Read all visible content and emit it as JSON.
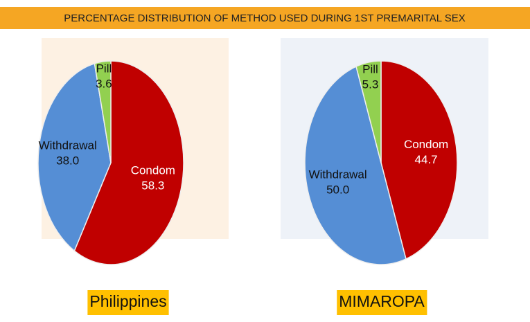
{
  "title": "PERCENTAGE DISTRIBUTION OF METHOD USED DURING 1ST PREMARITAL SEX",
  "chart_data": [
    {
      "type": "pie",
      "title": "Philippines",
      "categories": [
        "Condom",
        "Withdrawal",
        "Pill"
      ],
      "values": [
        58.3,
        38.0,
        3.6
      ],
      "value_labels": [
        "58.3",
        "38.0",
        "3.6"
      ],
      "colors": [
        "#c00000",
        "#558ed5",
        "#92d050"
      ]
    },
    {
      "type": "pie",
      "title": "MIMAROPA",
      "categories": [
        "Condom",
        "Withdrawal",
        "Pill"
      ],
      "values": [
        44.7,
        50.0,
        5.3
      ],
      "value_labels": [
        "44.7",
        "50.0",
        "5.3"
      ],
      "colors": [
        "#c00000",
        "#558ed5",
        "#92d050"
      ]
    }
  ]
}
